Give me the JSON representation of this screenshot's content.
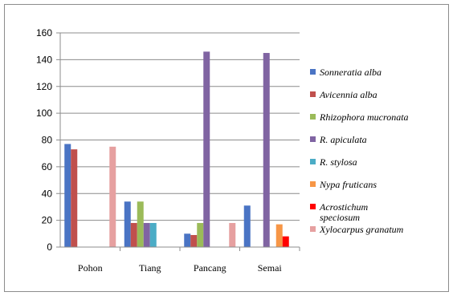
{
  "chart_data": {
    "type": "bar",
    "categories": [
      "Pohon",
      "Tiang",
      "Pancang",
      "Semai"
    ],
    "ylim": [
      0,
      160
    ],
    "yticks": [
      0,
      20,
      40,
      60,
      80,
      100,
      120,
      140,
      160
    ],
    "grid": true,
    "legend_position": "right",
    "title": "",
    "xlabel": "",
    "ylabel": "",
    "series": [
      {
        "name": "Sonneratia alba",
        "color": "#4a74c4",
        "values": [
          77,
          34,
          10,
          31
        ]
      },
      {
        "name": "Avicennia alba",
        "color": "#c0504d",
        "values": [
          73,
          18,
          9,
          0
        ]
      },
      {
        "name": "Rhizophora mucronata",
        "color": "#9bbb59",
        "values": [
          0,
          34,
          18,
          0
        ]
      },
      {
        "name": "R. apiculata",
        "color": "#8064a2",
        "values": [
          0,
          18,
          146,
          145
        ]
      },
      {
        "name": "R. stylosa",
        "color": "#4bacc6",
        "values": [
          0,
          18,
          0,
          0
        ]
      },
      {
        "name": "Nypa fruticans",
        "color": "#f79646",
        "values": [
          0,
          0,
          0,
          17
        ]
      },
      {
        "name": "Acrostichum speciosum",
        "color": "#ff0000",
        "values": [
          0,
          0,
          0,
          8
        ]
      },
      {
        "name": "Xylocarpus granatum",
        "color": "#e6a0a0",
        "values": [
          75,
          0,
          18,
          0
        ]
      }
    ]
  }
}
